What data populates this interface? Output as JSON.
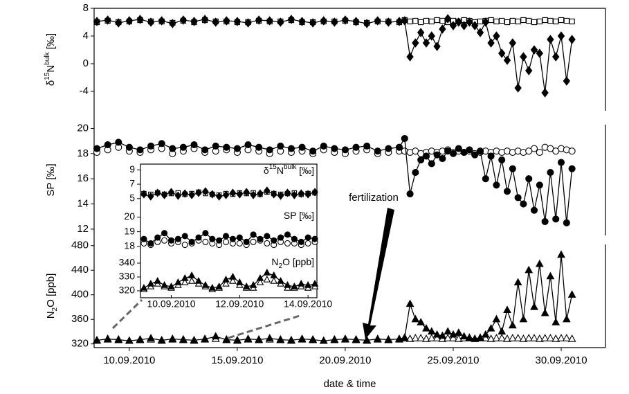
{
  "chart_data": [
    {
      "type": "line",
      "ylabel": [
        "δ",
        "15",
        "N",
        "bulk",
        " [‰]"
      ],
      "ylabel_script": [
        "",
        "super",
        "",
        "super",
        ""
      ],
      "xlim": [
        8.37,
        32.05
      ],
      "ylim": [
        -6.8,
        8
      ],
      "yticks": [
        -4,
        0,
        4,
        8
      ],
      "x": [
        8.5,
        9,
        9.5,
        10,
        10.5,
        11,
        11.5,
        12,
        12.5,
        13,
        13.5,
        14,
        14.5,
        15,
        15.5,
        16,
        16.5,
        17,
        17.5,
        18,
        18.5,
        19,
        19.5,
        20,
        20.5,
        21,
        21.5,
        22,
        22.5,
        22.75,
        23,
        23.25,
        23.5,
        23.75,
        24,
        24.25,
        24.5,
        24.75,
        25,
        25.25,
        25.5,
        25.75,
        26,
        26.25,
        26.5,
        26.75,
        27,
        27.25,
        27.5,
        27.75,
        28,
        28.25,
        28.5,
        28.75,
        29,
        29.25,
        29.5,
        29.75,
        30,
        30.25,
        30.5
      ],
      "series": [
        {
          "color": "#000000",
          "marker": "square",
          "filled": false,
          "connected": false,
          "values": [
            6.0,
            6.2,
            6.0,
            6.1,
            6.3,
            6.1,
            6.1,
            5.9,
            6.2,
            6.0,
            6.3,
            6.1,
            6.1,
            6.0,
            6.0,
            6.2,
            6.1,
            6.1,
            6.3,
            6.0,
            6.0,
            6.1,
            6.1,
            6.2,
            6.0,
            5.9,
            6.1,
            6.1,
            6.0,
            6.3,
            6.1,
            6.2,
            6.0,
            6.2,
            6.1,
            6.3,
            6.2,
            6.0,
            6.2,
            6.1,
            6.3,
            6.2,
            6.0,
            6.1,
            6.2,
            6.3,
            6.1,
            6.2,
            6.0,
            6.2,
            6.1,
            6.3,
            6.2,
            6.0,
            6.1,
            6.3,
            6.2,
            6.1,
            6.3,
            6.2,
            6.1
          ]
        },
        {
          "color": "#000000",
          "marker": "diamond",
          "filled": true,
          "connected": true,
          "values": [
            6.1,
            6.3,
            5.9,
            6.2,
            6.4,
            6.0,
            6.2,
            5.8,
            6.3,
            6.1,
            6.4,
            6.0,
            6.2,
            6.1,
            5.9,
            6.3,
            6.2,
            6.0,
            6.4,
            6.1,
            5.9,
            6.2,
            6.0,
            6.3,
            6.1,
            5.8,
            6.2,
            6.0,
            6.1,
            6.2,
            1,
            3,
            4.5,
            3,
            4,
            2.5,
            5,
            6.5,
            5.5,
            6,
            5.5,
            6,
            5.5,
            4.5,
            6,
            3,
            4,
            1.5,
            0.5,
            3,
            -3.5,
            1,
            -1,
            2,
            1.5,
            -4.2,
            3.5,
            1,
            4,
            -2.5,
            3.5
          ]
        }
      ]
    },
    {
      "type": "line",
      "ylabel": [
        "SP [‰]"
      ],
      "ylabel_script": [
        ""
      ],
      "xlim": [
        8.37,
        32.05
      ],
      "ylim": [
        11.5,
        20.3
      ],
      "yticks": [
        12,
        14,
        16,
        18,
        20
      ],
      "x": [
        8.5,
        9,
        9.5,
        10,
        10.5,
        11,
        11.5,
        12,
        12.5,
        13,
        13.5,
        14,
        14.5,
        15,
        15.5,
        16,
        16.5,
        17,
        17.5,
        18,
        18.5,
        19,
        19.5,
        20,
        20.5,
        21,
        21.5,
        22,
        22.5,
        22.75,
        23,
        23.25,
        23.5,
        23.75,
        24,
        24.25,
        24.5,
        24.75,
        25,
        25.25,
        25.5,
        25.75,
        26,
        26.25,
        26.5,
        26.75,
        27,
        27.25,
        27.5,
        27.75,
        28,
        28.25,
        28.5,
        28.75,
        29,
        29.25,
        29.5,
        29.75,
        30,
        30.25,
        30.5
      ],
      "series": [
        {
          "color": "#000000",
          "marker": "circle",
          "filled": false,
          "connected": false,
          "values": [
            18.1,
            18.3,
            18.5,
            18.2,
            18.1,
            18.3,
            18.4,
            18.0,
            18.2,
            18.4,
            18.1,
            18.2,
            18.3,
            18.1,
            18.3,
            18.2,
            18.0,
            18.2,
            18.1,
            18.2,
            18.0,
            18.3,
            18.1,
            18.0,
            18.2,
            18.3,
            18.0,
            18.1,
            18.2,
            18.2,
            18.1,
            18.2,
            18.0,
            18.1,
            18.2,
            18.1,
            18.2,
            18.3,
            18.1,
            18.2,
            18.1,
            18.2,
            18.0,
            18.1,
            18.2,
            18.1,
            18.2,
            18.1,
            18.2,
            18.1,
            18.2,
            18.1,
            18.2,
            18.4,
            18.1,
            18.5,
            18.4,
            18.2,
            18.4,
            18.3,
            18.2
          ]
        },
        {
          "color": "#000000",
          "marker": "circle",
          "filled": true,
          "connected": true,
          "values": [
            18.4,
            18.7,
            18.9,
            18.5,
            18.3,
            18.6,
            18.8,
            18.4,
            18.5,
            18.7,
            18.3,
            18.6,
            18.5,
            18.4,
            18.7,
            18.5,
            18.3,
            18.6,
            18.4,
            18.5,
            18.2,
            18.6,
            18.4,
            18.3,
            18.5,
            18.6,
            18.2,
            18.4,
            18.5,
            19.2,
            14.8,
            16.5,
            17.5,
            17.8,
            17.2,
            17.9,
            17.6,
            18.2,
            18.0,
            18.4,
            18.1,
            18.3,
            17.9,
            18.2,
            16.0,
            17.8,
            15.5,
            17.5,
            15.0,
            16.8,
            14.5,
            14.0,
            16.0,
            13.5,
            15.5,
            12.6,
            16.5,
            12.8,
            17.3,
            12.5,
            16.8
          ]
        }
      ]
    },
    {
      "type": "line",
      "ylabel": [
        "N",
        "2",
        "O [ppb]"
      ],
      "ylabel_script": [
        "",
        "sub",
        ""
      ],
      "xlim": [
        8.37,
        32.05
      ],
      "ylim": [
        314,
        482
      ],
      "yticks": [
        320,
        360,
        400,
        440,
        480
      ],
      "xticks": [
        {
          "value": 10,
          "label": "10.09.2010"
        },
        {
          "value": 15,
          "label": "15.09.2010"
        },
        {
          "value": 20,
          "label": "20.09.2010"
        },
        {
          "value": 25,
          "label": "25.09.2010"
        },
        {
          "value": 30,
          "label": "30.09.2010"
        }
      ],
      "xlabel": "date & time",
      "annotation": "fertilization",
      "x": [
        8.5,
        9,
        9.5,
        10,
        10.5,
        11,
        11.5,
        12,
        12.5,
        13,
        13.5,
        14,
        14.5,
        15,
        15.5,
        16,
        16.5,
        17,
        17.5,
        18,
        18.5,
        19,
        19.5,
        20,
        20.5,
        21,
        21.5,
        22,
        22.5,
        22.75,
        23,
        23.25,
        23.5,
        23.75,
        24,
        24.25,
        24.5,
        24.75,
        25,
        25.25,
        25.5,
        25.75,
        26,
        26.25,
        26.5,
        26.75,
        27,
        27.25,
        27.5,
        27.75,
        28,
        28.25,
        28.5,
        28.75,
        29,
        29.25,
        29.5,
        29.75,
        30,
        30.25,
        30.5
      ],
      "series": [
        {
          "color": "#000000",
          "marker": "triangle",
          "filled": false,
          "connected": false,
          "values": [
            325,
            327,
            326,
            325,
            326,
            327,
            325,
            327,
            326,
            325,
            327,
            328,
            326,
            325,
            327,
            326,
            327,
            326,
            325,
            327,
            326,
            325,
            326,
            327,
            326,
            325,
            327,
            326,
            327,
            329,
            328,
            329,
            329,
            328,
            329,
            329,
            328,
            329,
            329,
            328,
            329,
            329,
            328,
            329,
            329,
            328,
            329,
            329,
            328,
            329,
            329,
            328,
            329,
            329,
            328,
            329,
            329,
            328,
            329,
            329,
            328
          ]
        },
        {
          "color": "#000000",
          "marker": "triangle",
          "filled": true,
          "connected": true,
          "values": [
            326,
            328,
            327,
            325,
            327,
            329,
            326,
            328,
            327,
            326,
            328,
            332,
            327,
            326,
            328,
            327,
            329,
            327,
            326,
            328,
            327,
            325,
            327,
            328,
            327,
            326,
            328,
            327,
            328,
            330,
            385,
            360,
            355,
            345,
            340,
            335,
            333,
            340,
            335,
            338,
            332,
            330,
            328,
            330,
            335,
            345,
            360,
            340,
            375,
            350,
            420,
            360,
            440,
            380,
            450,
            370,
            430,
            355,
            465,
            360,
            400
          ]
        }
      ]
    },
    {
      "type": "line",
      "ylabel": [
        "δ",
        "15",
        "N",
        "bulk",
        " [‰]"
      ],
      "ylabel_script": [
        "",
        "super",
        "",
        "super",
        ""
      ],
      "xlim": [
        9.1,
        14.26
      ],
      "ylim": [
        4.5,
        9.7
      ],
      "yticks": [
        5,
        7,
        9
      ],
      "x": [
        9.2,
        9.4,
        9.6,
        9.8,
        10,
        10.2,
        10.4,
        10.6,
        10.8,
        11,
        11.2,
        11.4,
        11.6,
        11.8,
        12,
        12.2,
        12.4,
        12.6,
        12.8,
        13,
        13.2,
        13.4,
        13.6,
        13.8,
        14,
        14.2
      ],
      "series": [
        {
          "color": "#000000",
          "marker": "square",
          "filled": false,
          "connected": false,
          "values": [
            5.7,
            5.6,
            5.8,
            5.6,
            5.7,
            5.8,
            5.6,
            5.7,
            5.9,
            5.7,
            5.6,
            5.5,
            5.7,
            5.6,
            5.8,
            5.7,
            5.8,
            5.6,
            5.9,
            5.7,
            5.6,
            5.7,
            5.8,
            5.6,
            5.7,
            5.8
          ]
        },
        {
          "color": "#000000",
          "marker": "diamond",
          "filled": true,
          "connected": true,
          "values": [
            5.6,
            5.3,
            5.8,
            5.5,
            5.9,
            5.4,
            5.7,
            5.5,
            5.8,
            6.0,
            5.6,
            5.3,
            5.5,
            5.8,
            5.6,
            5.9,
            5.5,
            5.7,
            6.1,
            5.6,
            5.4,
            5.8,
            5.5,
            5.7,
            5.6,
            5.9
          ]
        }
      ]
    },
    {
      "type": "line",
      "ylabel": [
        "SP [‰]"
      ],
      "ylabel_script": [
        ""
      ],
      "xlim": [
        9.1,
        14.26
      ],
      "ylim": [
        17.7,
        20.5
      ],
      "yticks": [
        18,
        19,
        20
      ],
      "x": [
        9.2,
        9.4,
        9.6,
        9.8,
        10,
        10.2,
        10.4,
        10.6,
        10.8,
        11,
        11.2,
        11.4,
        11.6,
        11.8,
        12,
        12.2,
        12.4,
        12.6,
        12.8,
        13,
        13.2,
        13.4,
        13.6,
        13.8,
        14,
        14.2
      ],
      "series": [
        {
          "color": "#000000",
          "marker": "circle",
          "filled": false,
          "connected": false,
          "values": [
            18.2,
            18.1,
            18.3,
            18.4,
            18.2,
            18.3,
            18.1,
            18.2,
            18.4,
            18.3,
            18.2,
            18.1,
            18.3,
            18.2,
            18.2,
            18.1,
            18.3,
            18.4,
            18.2,
            18.1,
            18.3,
            18.2,
            18.2,
            18.1,
            18.2,
            18.3
          ]
        },
        {
          "color": "#000000",
          "marker": "circle",
          "filled": true,
          "connected": true,
          "values": [
            18.5,
            18.2,
            18.6,
            18.9,
            18.4,
            18.5,
            18.7,
            18.3,
            18.6,
            18.9,
            18.5,
            18.4,
            18.7,
            18.5,
            18.6,
            18.3,
            18.8,
            18.5,
            18.7,
            18.4,
            18.6,
            18.8,
            18.5,
            18.3,
            18.6,
            18.5
          ]
        }
      ]
    },
    {
      "type": "line",
      "ylabel": [
        "N",
        "2",
        "O [ppb]"
      ],
      "ylabel_script": [
        "",
        "sub",
        ""
      ],
      "xlim": [
        9.1,
        14.26
      ],
      "ylim": [
        317,
        345
      ],
      "yticks": [
        320,
        330,
        340
      ],
      "xticks": [
        {
          "value": 10,
          "label": "10.09.2010"
        },
        {
          "value": 12,
          "label": "12.09.2010"
        },
        {
          "value": 14,
          "label": "14.09.2010"
        }
      ],
      "x": [
        9.2,
        9.4,
        9.6,
        9.8,
        10,
        10.2,
        10.4,
        10.6,
        10.8,
        11,
        11.2,
        11.4,
        11.6,
        11.8,
        12,
        12.2,
        12.4,
        12.6,
        12.8,
        13,
        13.2,
        13.4,
        13.6,
        13.8,
        14,
        14.2
      ],
      "series": [
        {
          "color": "#000000",
          "marker": "triangle",
          "filled": false,
          "connected": false,
          "values": [
            321,
            323,
            325,
            323,
            322,
            324,
            326,
            327,
            325,
            323,
            321,
            322,
            325,
            327,
            324,
            322,
            322,
            326,
            328,
            327,
            325,
            322,
            322,
            323,
            322,
            323
          ]
        },
        {
          "color": "#000000",
          "marker": "triangle",
          "filled": true,
          "connected": true,
          "values": [
            322,
            325,
            327,
            324,
            323,
            326,
            329,
            331,
            327,
            324,
            322,
            323,
            328,
            330,
            326,
            323,
            324,
            329,
            333,
            331,
            327,
            324,
            323,
            325,
            324,
            325
          ]
        }
      ]
    }
  ]
}
